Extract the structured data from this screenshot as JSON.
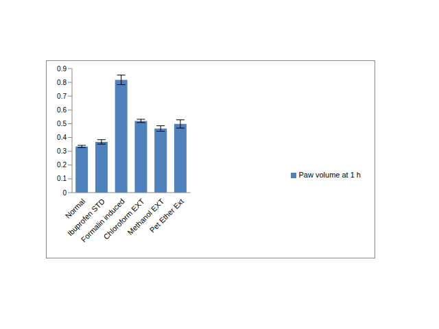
{
  "chart_data": {
    "type": "bar",
    "categories": [
      "Normal",
      "Ibuprofen STD",
      "Formalin induced",
      "Chloroform EXT",
      "Methanol EXT",
      "Pet Ether Ext"
    ],
    "series": [
      {
        "name": "Paw volume at 1 h",
        "color": "#4f81bd",
        "values": [
          0.335,
          0.368,
          0.818,
          0.52,
          0.465,
          0.498
        ],
        "error": [
          0.008,
          0.016,
          0.035,
          0.012,
          0.02,
          0.03
        ]
      }
    ],
    "ylim": [
      0,
      0.9
    ],
    "yticks": [
      0,
      0.1,
      0.2,
      0.3,
      0.4,
      0.5,
      0.6,
      0.7,
      0.8,
      0.9
    ],
    "grid": false,
    "legend": "right"
  }
}
